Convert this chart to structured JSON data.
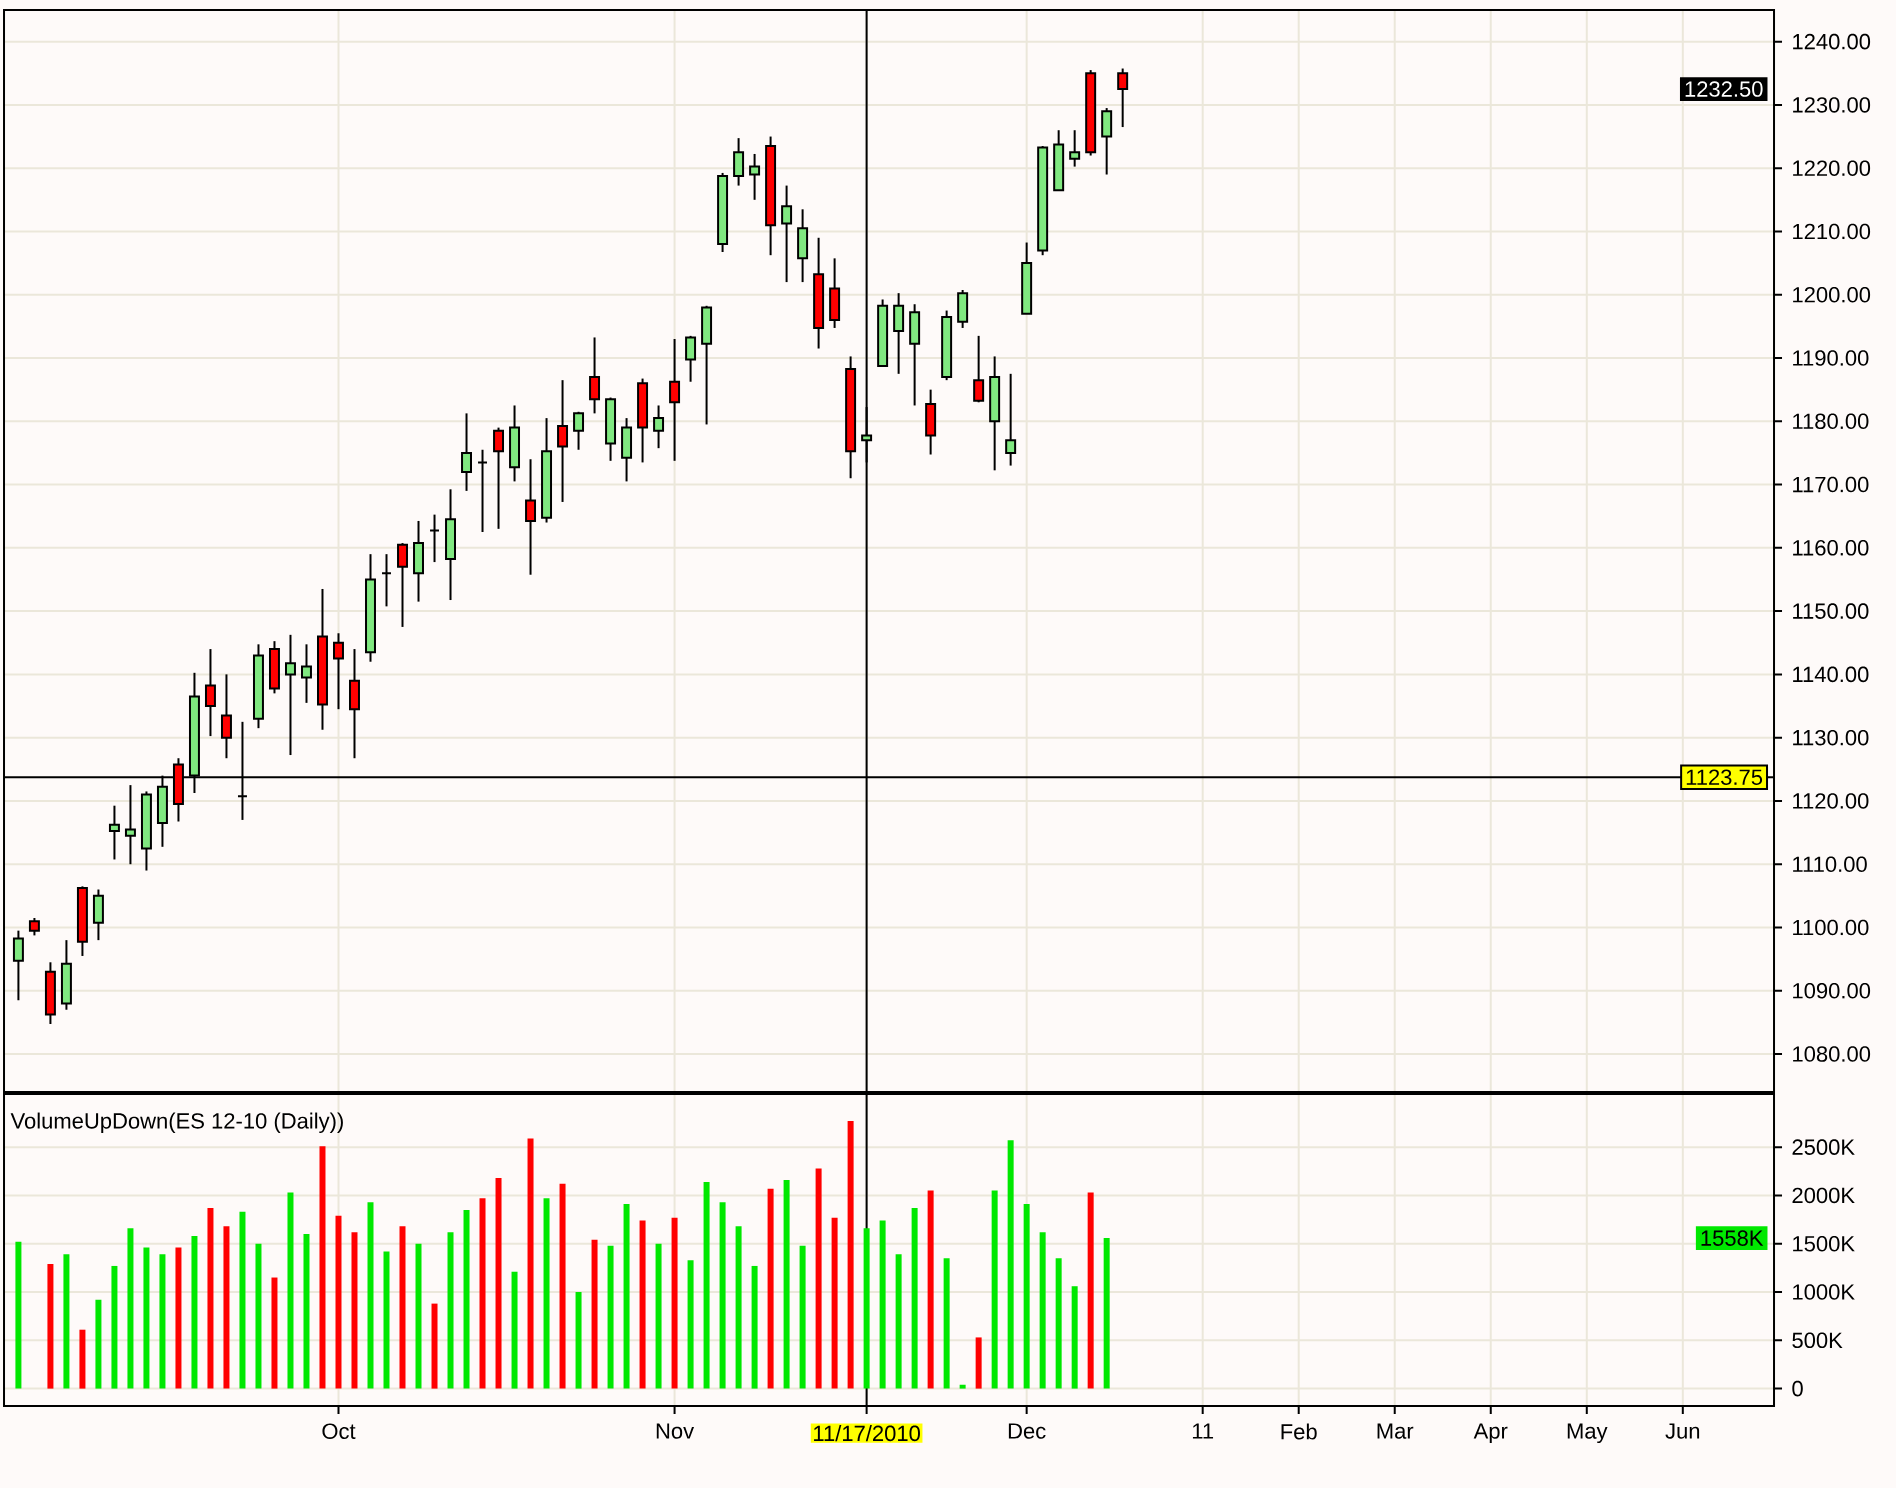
{
  "chart_data": [
    {
      "type": "candlestick",
      "categories": [
        null,
        null,
        null,
        null,
        null,
        null,
        null,
        null,
        null,
        null,
        null,
        null,
        null,
        null,
        null,
        null,
        null,
        null,
        null,
        null,
        "Oct",
        null,
        null,
        null,
        null,
        null,
        null,
        null,
        null,
        null,
        null,
        null,
        null,
        null,
        null,
        null,
        null,
        null,
        null,
        null,
        null,
        "Nov",
        null,
        null,
        null,
        null,
        null,
        null,
        null,
        null,
        null,
        null,
        null,
        "11/17/2010",
        null,
        null,
        null,
        null,
        null,
        null,
        null,
        null,
        null,
        "Dec",
        null,
        null,
        null,
        null,
        null,
        null,
        null,
        null,
        null,
        null,
        "11",
        null,
        null,
        null,
        null,
        null,
        "Feb",
        null,
        null,
        null,
        null,
        null,
        "Mar",
        null,
        null,
        null,
        null,
        null,
        "Apr",
        null,
        null,
        null,
        null,
        null,
        "May",
        null,
        null,
        null,
        null,
        null,
        "Jun",
        null,
        null,
        null,
        null,
        null
      ],
      "ohlc": [
        [
          1094.75,
          1099.5,
          1088.5,
          1098.25
        ],
        [
          1101,
          1101.5,
          1098.75,
          1099.5
        ],
        [
          1093,
          1094.5,
          1084.75,
          1086.25
        ],
        [
          1088,
          1098,
          1087,
          1094.25
        ],
        [
          1106.25,
          1106.5,
          1095.5,
          1097.75
        ],
        [
          1100.75,
          1106,
          1098,
          1105
        ],
        [
          1115.25,
          1119.25,
          1110.75,
          1116.25
        ],
        [
          1114.5,
          1122.5,
          1110,
          1115.5
        ],
        [
          1112.5,
          1121.5,
          1109,
          1121
        ],
        [
          1116.5,
          1124,
          1112.75,
          1122.25
        ],
        [
          1125.75,
          1126.75,
          1116.75,
          1119.5
        ],
        [
          1124,
          1140.25,
          1121.25,
          1136.5
        ],
        [
          1138.25,
          1144,
          1130.25,
          1135
        ],
        [
          1133.5,
          1140,
          1126.75,
          1130
        ],
        [
          1120.75,
          1132.5,
          1117,
          1120.75
        ],
        [
          1133,
          1144.75,
          1131.5,
          1143
        ],
        [
          1144,
          1145.25,
          1137,
          1137.75
        ],
        [
          1140,
          1146.25,
          1127.25,
          1141.75
        ],
        [
          1139.5,
          1144.75,
          1135.5,
          1141.25
        ],
        [
          1146,
          1153.5,
          1131.25,
          1135.25
        ],
        [
          1145,
          1146.5,
          1134.5,
          1142.5
        ],
        [
          1139,
          1144,
          1126.75,
          1134.5
        ],
        [
          1143.5,
          1159,
          1142,
          1155
        ],
        [
          1156,
          1159,
          1150.75,
          1156
        ],
        [
          1160.5,
          1160.75,
          1147.5,
          1157
        ],
        [
          1156,
          1164.25,
          1151.5,
          1160.75
        ],
        [
          1162.75,
          1165.25,
          1157.75,
          1162.75
        ],
        [
          1158.25,
          1169.25,
          1151.75,
          1164.5
        ],
        [
          1172,
          1181.25,
          1169,
          1175
        ],
        [
          1173.5,
          1175.5,
          1162.5,
          1173.5
        ],
        [
          1178.5,
          1179,
          1163,
          1175.25
        ],
        [
          1172.75,
          1182.5,
          1170.5,
          1179
        ],
        [
          1167.5,
          1174,
          1155.75,
          1164.25
        ],
        [
          1164.75,
          1180.5,
          1164,
          1175.25
        ],
        [
          1179.25,
          1186.5,
          1167.25,
          1176
        ],
        [
          1178.5,
          1181.5,
          1175.5,
          1181.25
        ],
        [
          1187,
          1193.25,
          1181.25,
          1183.5
        ],
        [
          1176.5,
          1183.75,
          1173.75,
          1183.5
        ],
        [
          1174.25,
          1180.5,
          1170.5,
          1179
        ],
        [
          1186,
          1186.75,
          1173.5,
          1179
        ],
        [
          1178.5,
          1182.5,
          1175.75,
          1180.5
        ],
        [
          1186.25,
          1193,
          1173.75,
          1183
        ],
        [
          1189.75,
          1193.5,
          1186.25,
          1193.25
        ],
        [
          1192.25,
          1198.25,
          1179.5,
          1198
        ],
        [
          1208,
          1219.25,
          1206.75,
          1218.75
        ],
        [
          1218.75,
          1224.75,
          1217.25,
          1222.5
        ],
        [
          1219,
          1222.25,
          1215,
          1220.25
        ],
        [
          1223.5,
          1225,
          1206.25,
          1211
        ],
        [
          1211.25,
          1217.25,
          1202,
          1214
        ],
        [
          1205.75,
          1213.5,
          1202,
          1210.5
        ],
        [
          1203.25,
          1209,
          1191.5,
          1194.75
        ],
        [
          1201,
          1205.75,
          1194.75,
          1196
        ],
        [
          1188.25,
          1190.25,
          1171,
          1175.25
        ],
        [
          1177,
          1182.25,
          1173.5,
          1177.75
        ],
        [
          1188.75,
          1199.25,
          1188.75,
          1198.25
        ],
        [
          1194.25,
          1200.25,
          1187.5,
          1198.25
        ],
        [
          1192.25,
          1198.5,
          1182.5,
          1197.25
        ],
        [
          1182.75,
          1185,
          1174.75,
          1177.75
        ],
        [
          1187,
          1197.5,
          1186.5,
          1196.5
        ],
        [
          1195.75,
          1200.75,
          1194.75,
          1200.25
        ],
        [
          1186.5,
          1193.5,
          1183,
          1183.25
        ],
        [
          1180,
          1190.25,
          1172.25,
          1187
        ],
        [
          1175,
          1187.5,
          1173,
          1177
        ],
        [
          1197,
          1208.25,
          1197,
          1205
        ],
        [
          1207,
          1223.5,
          1206.25,
          1223.25
        ],
        [
          1216.5,
          1226,
          1216.5,
          1223.75
        ],
        [
          1221.5,
          1226,
          1220.25,
          1222.5
        ],
        [
          1235,
          1235.5,
          1222,
          1222.5
        ],
        [
          1225,
          1229.5,
          1219,
          1229
        ],
        [
          1235,
          1235.75,
          1226.5,
          1232.5
        ],
        null,
        null,
        null,
        null,
        null,
        null,
        null,
        null,
        null,
        null,
        null,
        null,
        null,
        null,
        null,
        null,
        null,
        null,
        null,
        null,
        null,
        null,
        null,
        null,
        null,
        null,
        null,
        null,
        null,
        null,
        null,
        null,
        null,
        null,
        null,
        null,
        null,
        null,
        null,
        null
      ],
      "colors": [
        "#80e880",
        "#ff0000",
        "#ff0000",
        "#80e880",
        "#ff0000",
        "#80e880",
        "#80e880",
        "#80e880",
        "#80e880",
        "#80e880",
        "#ff0000",
        "#80e880",
        "#ff0000",
        "#ff0000",
        "#000000",
        "#80e880",
        "#ff0000",
        "#80e880",
        "#80e880",
        "#ff0000",
        "#ff0000",
        "#ff0000",
        "#80e880",
        "#000000",
        "#ff0000",
        "#80e880",
        "#000000",
        "#80e880",
        "#80e880",
        "#000000",
        "#ff0000",
        "#80e880",
        "#ff0000",
        "#80e880",
        "#ff0000",
        "#80e880",
        "#ff0000",
        "#80e880",
        "#80e880",
        "#ff0000",
        "#80e880",
        "#ff0000",
        "#80e880",
        "#80e880",
        "#80e880",
        "#80e880",
        "#80e880",
        "#ff0000",
        "#80e880",
        "#80e880",
        "#ff0000",
        "#ff0000",
        "#ff0000",
        "#80e880",
        "#80e880",
        "#80e880",
        "#80e880",
        "#ff0000",
        "#80e880",
        "#80e880",
        "#ff0000",
        "#80e880",
        "#80e880",
        "#80e880",
        "#80e880",
        "#80e880",
        "#80e880",
        "#ff0000",
        "#80e880",
        "#ff0000",
        null,
        null,
        null,
        null,
        null,
        null,
        null,
        null,
        null,
        null,
        null,
        null,
        null,
        null,
        null,
        null,
        null,
        null,
        null,
        null,
        null,
        null,
        null,
        null,
        null,
        null,
        null,
        null,
        null,
        null,
        null,
        null,
        null,
        null,
        null,
        null,
        null,
        null,
        null,
        null
      ],
      "ylim": [
        1074,
        1245
      ],
      "yticks": [
        {
          "value": 1080,
          "label": "1080.00"
        },
        {
          "value": 1090,
          "label": "1090.00"
        },
        {
          "value": 1100,
          "label": "1100.00"
        },
        {
          "value": 1110,
          "label": "1110.00"
        },
        {
          "value": 1120,
          "label": "1120.00"
        },
        {
          "value": 1130,
          "label": "1130.00"
        },
        {
          "value": 1140,
          "label": "1140.00"
        },
        {
          "value": 1150,
          "label": "1150.00"
        },
        {
          "value": 1160,
          "label": "1160.00"
        },
        {
          "value": 1170,
          "label": "1170.00"
        },
        {
          "value": 1180,
          "label": "1180.00"
        },
        {
          "value": 1190,
          "label": "1190.00"
        },
        {
          "value": 1200,
          "label": "1200.00"
        },
        {
          "value": 1210,
          "label": "1210.00"
        },
        {
          "value": 1220,
          "label": "1220.00"
        },
        {
          "value": 1230,
          "label": "1230.00"
        },
        {
          "value": 1240,
          "label": "1240.00"
        }
      ],
      "grid": true,
      "tick_labels": "y",
      "ref_lines": [
        {
          "axis": "y",
          "value": 1123.75,
          "label": "1123.75",
          "color": "#000000"
        },
        {
          "axis": "x",
          "value": "11/17/2010",
          "color": "#000000"
        }
      ],
      "annotations": [
        "1232.50"
      ]
    },
    {
      "type": "bar",
      "title": "VolumeUpDown(ES 12-10 (Daily))",
      "categories": [
        null,
        null,
        null,
        null,
        null,
        null,
        null,
        null,
        null,
        null,
        null,
        null,
        null,
        null,
        null,
        null,
        null,
        null,
        null,
        null,
        "Oct",
        null,
        null,
        null,
        null,
        null,
        null,
        null,
        null,
        null,
        null,
        null,
        null,
        null,
        null,
        null,
        null,
        null,
        null,
        null,
        null,
        "Nov",
        null,
        null,
        null,
        null,
        null,
        null,
        null,
        null,
        null,
        null,
        null,
        "11/17/2010",
        null,
        null,
        null,
        null,
        null,
        null,
        null,
        null,
        null,
        "Dec",
        null,
        null,
        null,
        null,
        null,
        null,
        null,
        null,
        null,
        null,
        "11",
        null,
        null,
        null,
        null,
        null,
        "Feb",
        null,
        null,
        null,
        null,
        null,
        "Mar",
        null,
        null,
        null,
        null,
        null,
        "Apr",
        null,
        null,
        null,
        null,
        null,
        "May",
        null,
        null,
        null,
        null,
        null,
        "Jun",
        null,
        null,
        null,
        null,
        null
      ],
      "values": [
        1520,
        null,
        1290,
        1390,
        610,
        920,
        1270,
        1660,
        1460,
        1390,
        1460,
        1580,
        1870,
        1680,
        1830,
        1500,
        1150,
        2030,
        1600,
        2510,
        1790,
        1620,
        1930,
        1420,
        1680,
        1500,
        880,
        1620,
        1850,
        1970,
        2180,
        1210,
        2590,
        1970,
        2120,
        1000,
        1540,
        1480,
        1910,
        1740,
        1500,
        1770,
        1330,
        2140,
        1930,
        1680,
        1270,
        2070,
        2160,
        1480,
        2280,
        1770,
        2770,
        1660,
        1740,
        1390,
        1870,
        2050,
        1350,
        40,
        530,
        2050,
        2570,
        1910,
        1620,
        1350,
        1060,
        2030,
        1558,
        null,
        null,
        null,
        null,
        null,
        null,
        null,
        null,
        null,
        null,
        null,
        null,
        null,
        null,
        null,
        null,
        null,
        null,
        null,
        null,
        null,
        null,
        null,
        null,
        null,
        null,
        null,
        null,
        null,
        null,
        null,
        null,
        null,
        null,
        null,
        null,
        null,
        null,
        null,
        null,
        null
      ],
      "colors": [
        "#00e800",
        null,
        "#ff0000",
        "#00e800",
        "#ff0000",
        "#00e800",
        "#00e800",
        "#00e800",
        "#00e800",
        "#00e800",
        "#ff0000",
        "#00e800",
        "#ff0000",
        "#ff0000",
        "#00e800",
        "#00e800",
        "#ff0000",
        "#00e800",
        "#00e800",
        "#ff0000",
        "#ff0000",
        "#ff0000",
        "#00e800",
        "#00e800",
        "#ff0000",
        "#00e800",
        "#ff0000",
        "#00e800",
        "#00e800",
        "#ff0000",
        "#ff0000",
        "#00e800",
        "#ff0000",
        "#00e800",
        "#ff0000",
        "#00e800",
        "#ff0000",
        "#00e800",
        "#00e800",
        "#ff0000",
        "#00e800",
        "#ff0000",
        "#00e800",
        "#00e800",
        "#00e800",
        "#00e800",
        "#00e800",
        "#ff0000",
        "#00e800",
        "#00e800",
        "#ff0000",
        "#ff0000",
        "#ff0000",
        "#00e800",
        "#00e800",
        "#00e800",
        "#00e800",
        "#ff0000",
        "#00e800",
        "#00e800",
        "#ff0000",
        "#00e800",
        "#00e800",
        "#00e800",
        "#00e800",
        "#00e800",
        "#00e800",
        "#ff0000",
        "#00e800",
        null,
        null,
        null,
        null,
        null,
        null,
        null,
        null,
        null,
        null,
        null,
        null,
        null,
        null,
        null,
        null,
        null,
        null,
        null,
        null,
        null,
        null,
        null,
        null,
        null,
        null,
        null,
        null,
        null,
        null,
        null,
        null,
        null,
        null,
        null,
        null,
        null,
        null,
        null,
        null,
        null
      ],
      "ylim": [
        -180,
        3050
      ],
      "yticks": [
        0,
        {
          "value": 500,
          "label": "500K"
        },
        {
          "value": 1000,
          "label": "1000K"
        },
        {
          "value": 1500,
          "label": "1500K"
        },
        {
          "value": 2000,
          "label": "2000K"
        },
        {
          "value": 2500,
          "label": "2500K"
        }
      ],
      "grid": true,
      "ref_lines": [
        {
          "axis": "x",
          "value": "11/17/2010",
          "color": "#000000"
        }
      ],
      "annotations": [
        {
          "text": "1558K",
          "y": 1558
        }
      ]
    }
  ]
}
